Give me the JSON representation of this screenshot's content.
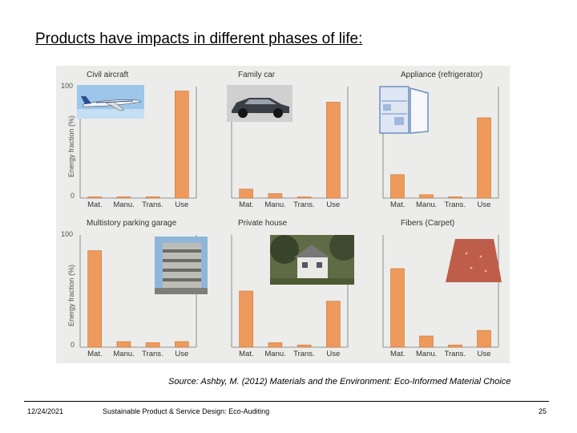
{
  "slide": {
    "title": "Products have impacts in different phases of life:",
    "source": "Source: Ashby, M. (2012) Materials and the Environment: Eco-Informed Material Choice",
    "footer": {
      "date": "12/24/2021",
      "title": "Sustainable Product & Service Design: Eco-Auditing",
      "page": "25"
    }
  },
  "colors": {
    "bar": "#ee9a5c",
    "bar_stroke": "#c9733a",
    "axis": "#777777",
    "figure_bg": "#ececea"
  },
  "chart_data": [
    {
      "type": "bar",
      "title": "Civil aircraft",
      "categories": [
        "Mat.",
        "Manu.",
        "Trans.",
        "Use"
      ],
      "values": [
        1,
        1,
        0.5,
        96
      ],
      "ylabel": "Energy fraction (%)",
      "ylim": [
        0,
        100
      ],
      "yticks": [
        "100",
        "0"
      ]
    },
    {
      "type": "bar",
      "title": "Family car",
      "categories": [
        "Mat.",
        "Manu.",
        "Trans.",
        "Use"
      ],
      "values": [
        8,
        4,
        1,
        86
      ],
      "ylabel": "",
      "ylim": [
        0,
        100
      ],
      "yticks": []
    },
    {
      "type": "bar",
      "title": "Appliance (refrigerator)",
      "categories": [
        "Mat.",
        "Manu.",
        "Trans.",
        "Use"
      ],
      "values": [
        21,
        3,
        0.5,
        72
      ],
      "ylabel": "",
      "ylim": [
        0,
        100
      ],
      "yticks": []
    },
    {
      "type": "bar",
      "title": "Multistory parking garage",
      "categories": [
        "Mat.",
        "Manu.",
        "Trans.",
        "Use"
      ],
      "values": [
        86,
        5,
        4,
        5
      ],
      "ylabel": "Energy fraction (%)",
      "ylim": [
        0,
        100
      ],
      "yticks": [
        "100",
        "0"
      ]
    },
    {
      "type": "bar",
      "title": "Private house",
      "categories": [
        "Mat.",
        "Manu.",
        "Trans.",
        "Use"
      ],
      "values": [
        50,
        4,
        2,
        41
      ],
      "ylabel": "",
      "ylim": [
        0,
        100
      ],
      "yticks": []
    },
    {
      "type": "bar",
      "title": "Fibers (Carpet)",
      "categories": [
        "Mat.",
        "Manu.",
        "Trans.",
        "Use"
      ],
      "values": [
        70,
        10,
        2,
        15
      ],
      "ylabel": "",
      "ylim": [
        0,
        100
      ],
      "yticks": []
    }
  ]
}
